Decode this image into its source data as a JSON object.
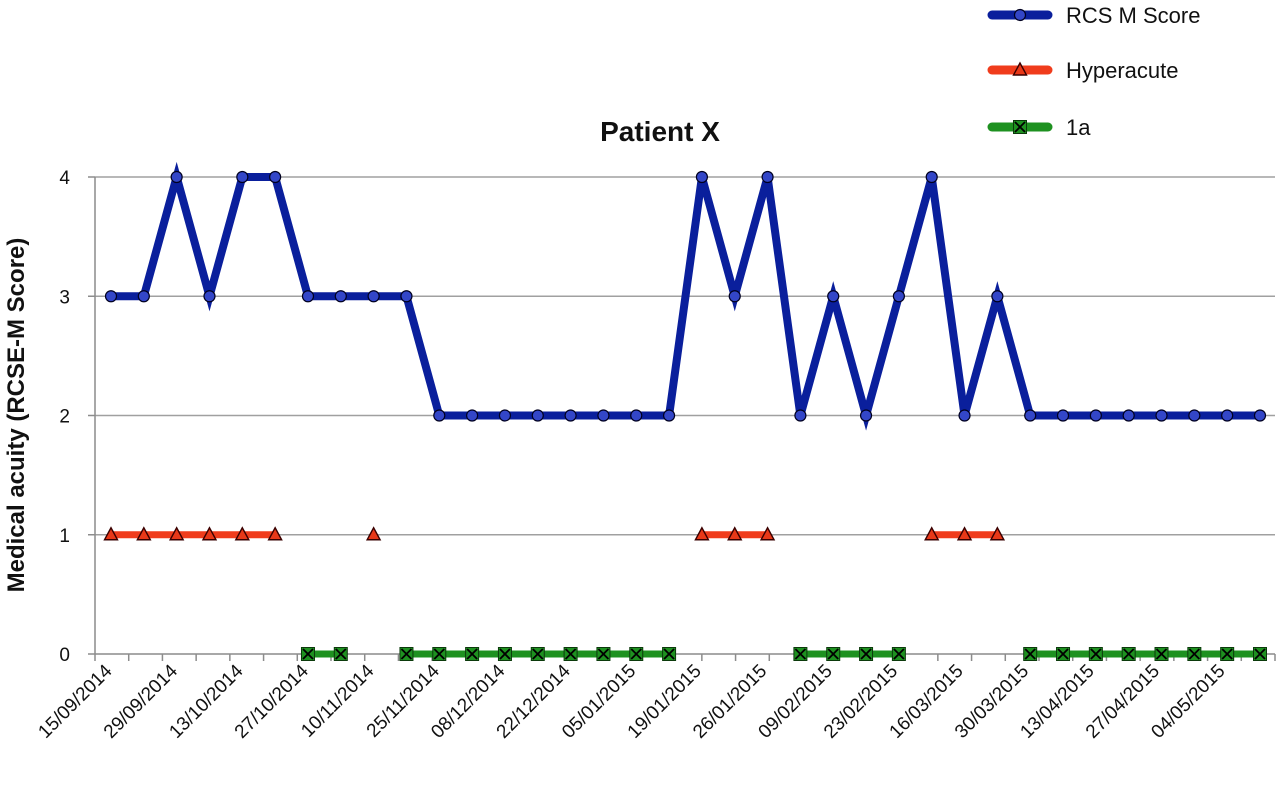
{
  "chart_data": {
    "type": "line",
    "title": "Patient X",
    "ylabel": "Medical acuity (RCSE-M Score)",
    "xlabel": "",
    "ylim": [
      0,
      4
    ],
    "yticks": [
      "0",
      "1",
      "2",
      "3",
      "4"
    ],
    "grid": true,
    "legend_position": "top-right",
    "x_tick_labels": [
      "15/09/2014",
      "29/09/2014",
      "13/10/2014",
      "27/10/2014",
      "10/11/2014",
      "25/11/2014",
      "08/12/2014",
      "22/12/2014",
      "05/01/2015",
      "19/01/2015",
      "26/01/2015",
      "09/02/2015",
      "23/02/2015",
      "16/03/2015",
      "30/03/2015",
      "13/04/2015",
      "27/04/2015",
      "04/05/2015"
    ],
    "n_points": 36,
    "series": [
      {
        "name": "RCS M Score",
        "color": "#0a1f9c",
        "marker": "diamond",
        "values": [
          3,
          3,
          4,
          3,
          4,
          4,
          3,
          3,
          3,
          3,
          2,
          2,
          2,
          2,
          2,
          2,
          2,
          2,
          4,
          3,
          4,
          2,
          3,
          2,
          3,
          4,
          2,
          3,
          2,
          2,
          2,
          2,
          2,
          2,
          2,
          2
        ]
      },
      {
        "name": "Hyperacute",
        "color": "#f03c1c",
        "marker": "triangle",
        "values": [
          1,
          1,
          1,
          1,
          1,
          1,
          null,
          null,
          1,
          null,
          null,
          null,
          null,
          null,
          null,
          null,
          null,
          null,
          1,
          1,
          1,
          null,
          null,
          null,
          null,
          1,
          1,
          1,
          null,
          null,
          null,
          null,
          null,
          null,
          null,
          null
        ]
      },
      {
        "name": "1a",
        "color": "#1e9120",
        "marker": "x",
        "values": [
          null,
          null,
          null,
          null,
          null,
          null,
          0,
          0,
          null,
          0,
          0,
          0,
          0,
          0,
          0,
          0,
          0,
          0,
          null,
          null,
          null,
          0,
          0,
          0,
          0,
          null,
          null,
          null,
          0,
          0,
          0,
          0,
          0,
          0,
          0,
          0
        ]
      }
    ]
  }
}
